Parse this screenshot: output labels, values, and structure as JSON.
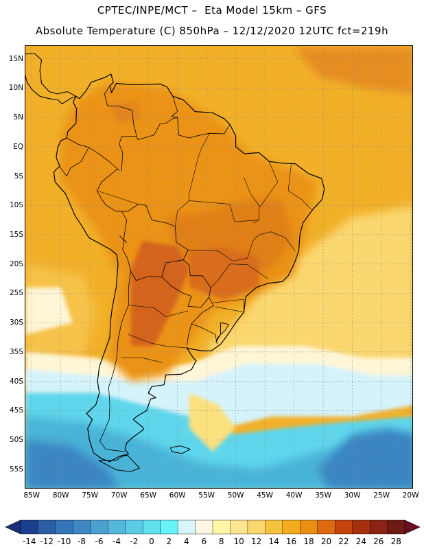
{
  "header": {
    "line1": "CPTEC/INPE/MCT –  Eta Model 15km – GFS",
    "line2": "Absolute Temperature (C) 850hPa – 12/12/2020 12UTC fct=219h"
  },
  "axes": {
    "lat_labels": [
      "15N",
      "10N",
      "5N",
      "EQ",
      "5S",
      "10S",
      "15S",
      "20S",
      "25S",
      "30S",
      "35S",
      "40S",
      "45S",
      "50S",
      "55S"
    ],
    "lat_values": [
      15,
      10,
      5,
      0,
      -5,
      -10,
      -15,
      -20,
      -25,
      -30,
      -35,
      -40,
      -45,
      -50,
      -55
    ],
    "lon_labels": [
      "85W",
      "80W",
      "75W",
      "70W",
      "65W",
      "60W",
      "55W",
      "50W",
      "45W",
      "40W",
      "35W",
      "30W",
      "25W",
      "20W"
    ],
    "lon_values": [
      -85,
      -80,
      -75,
      -70,
      -65,
      -60,
      -55,
      -50,
      -45,
      -40,
      -35,
      -30,
      -25,
      -20
    ]
  },
  "colorbar": {
    "labels": [
      "-14",
      "-12",
      "-10",
      "-8",
      "-6",
      "-4",
      "-2",
      "0",
      "2",
      "4",
      "6",
      "8",
      "10",
      "12",
      "14",
      "16",
      "18",
      "20",
      "22",
      "24",
      "26",
      "28"
    ],
    "colors": [
      "#1d3f8f",
      "#2a5fa8",
      "#3574b8",
      "#3f88c4",
      "#4aa0cf",
      "#55b7dc",
      "#5ccbe6",
      "#5ee0ee",
      "#66f4fa",
      "#d7f6fc",
      "#fff7e3",
      "#fff6a6",
      "#fde58f",
      "#fbd770",
      "#f5c23f",
      "#f2ac1c",
      "#ea8f14",
      "#e0690f",
      "#c4440c",
      "#a6300c",
      "#8a2314",
      "#6f1a14"
    ],
    "under_color": "#1b2f7a",
    "over_color": "#6a0f22"
  },
  "palette": {
    "ocean_warm": "#f2b029",
    "land_hot": "#eb9318",
    "land_hottest": "#d4641c",
    "mid_yellow": "#fbd770",
    "pale": "#fff6d7",
    "ice": "#d5f3fb",
    "cyan": "#5fd6ec",
    "blue_mid": "#4ab3d8",
    "blue_deep": "#3a86c2",
    "coast": "#000000",
    "grid": "#888888"
  },
  "chart_data": {
    "type": "heatmap",
    "title": "Absolute Temperature (C) 850hPa",
    "model": "Eta Model 15km – GFS",
    "valid": "12/12/2020 12UTC fct=219h",
    "variable": "Temperature (C)",
    "level": "850hPa",
    "lon_range": [
      -86,
      -20
    ],
    "lat_range": [
      -58,
      17
    ],
    "scale_min": -14,
    "scale_max": 28,
    "scale_step": 2,
    "regions": [
      {
        "name": "tropical-ocean-and-amazon",
        "approx_temp_c": 18
      },
      {
        "name": "central-brazil-heat",
        "approx_temp_c": 22
      },
      {
        "name": "chaco-argentina-heat-core",
        "approx_temp_c": 24
      },
      {
        "name": "south-atlantic-subtropics",
        "approx_temp_c": 12
      },
      {
        "name": "cold-front-band",
        "approx_temp_c": 6
      },
      {
        "name": "southern-ocean",
        "approx_temp_c": -4
      },
      {
        "name": "southern-ocean-deep",
        "approx_temp_c": -8
      }
    ]
  }
}
